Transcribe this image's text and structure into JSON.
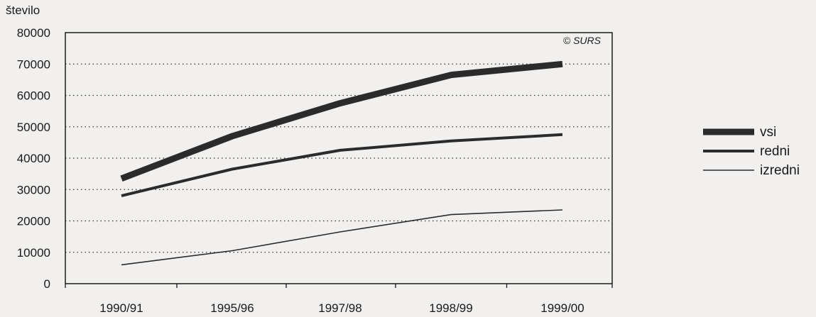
{
  "chart_data": {
    "type": "line",
    "ylabel": "število",
    "credit": "© SURS",
    "categories": [
      "1990/91",
      "1995/96",
      "1997/98",
      "1998/99",
      "1999/00"
    ],
    "ylim": [
      0,
      80000
    ],
    "yticks": [
      0,
      10000,
      20000,
      30000,
      40000,
      50000,
      60000,
      70000,
      80000
    ],
    "grid": "horizontal dotted",
    "legend_position": "right",
    "series": [
      {
        "name": "vsi",
        "values": [
          33500,
          47000,
          57500,
          66500,
          70000
        ],
        "color": "#2b2b2b",
        "weight": "thick"
      },
      {
        "name": "redni",
        "values": [
          28000,
          36500,
          42500,
          45500,
          47500
        ],
        "color": "#2b2b2b",
        "weight": "medium"
      },
      {
        "name": "izredni",
        "values": [
          6000,
          10500,
          16500,
          22000,
          23500
        ],
        "color": "#2b2b2b",
        "weight": "thin"
      }
    ]
  }
}
